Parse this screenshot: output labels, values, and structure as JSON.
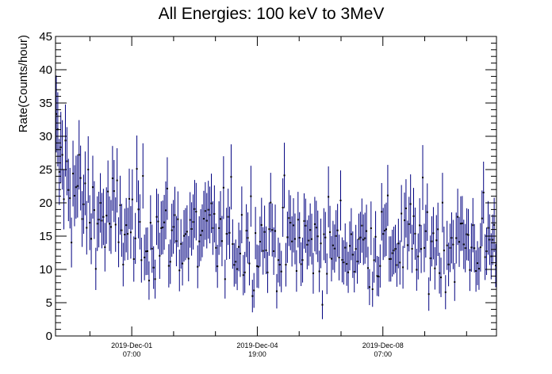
{
  "chart_data": {
    "type": "scatter",
    "title": "All Energies:  100 keV to 3MeV",
    "xlabel": "",
    "ylabel": "Rate(Counts/hour)",
    "x_range": [
      "2019-11-29 04:00",
      "2019-12-11 11:00"
    ],
    "ylim": [
      0,
      45
    ],
    "y_ticks": [
      0,
      5,
      10,
      15,
      20,
      25,
      30,
      35,
      40,
      45
    ],
    "x_ticks": [
      {
        "date": "2019-Dec-01",
        "time": "07:00",
        "at": "2019-12-01 07:00"
      },
      {
        "date": "2019-Dec-04",
        "time": "19:00",
        "at": "2019-12-04 19:00"
      },
      {
        "date": "2019-Dec-08",
        "time": "07:00",
        "at": "2019-12-08 07:00"
      }
    ],
    "grid": false,
    "legend": "none",
    "series_color": "#000080",
    "marker": "point-with-error-bars",
    "series": [
      {
        "x": [
          "2019-11-29 04:00",
          "2019-12-11 11:00"
        ],
        "approx_rate_profile": [
          {
            "x": "2019-11-29 04:00",
            "y": 27
          },
          {
            "x": "2019-11-29 12:00",
            "y": 24
          },
          {
            "x": "2019-11-30 00:00",
            "y": 19
          },
          {
            "x": "2019-11-30 18:00",
            "y": 17
          },
          {
            "x": "2019-12-01 07:00",
            "y": 16
          },
          {
            "x": "2019-12-03 00:00",
            "y": 15
          },
          {
            "x": "2019-12-05 00:00",
            "y": 14.5
          },
          {
            "x": "2019-12-07 00:00",
            "y": 13.5
          },
          {
            "x": "2019-12-09 00:00",
            "y": 14
          },
          {
            "x": "2019-12-11 11:00",
            "y": 14
          }
        ],
        "n_points": 290
      }
    ]
  }
}
